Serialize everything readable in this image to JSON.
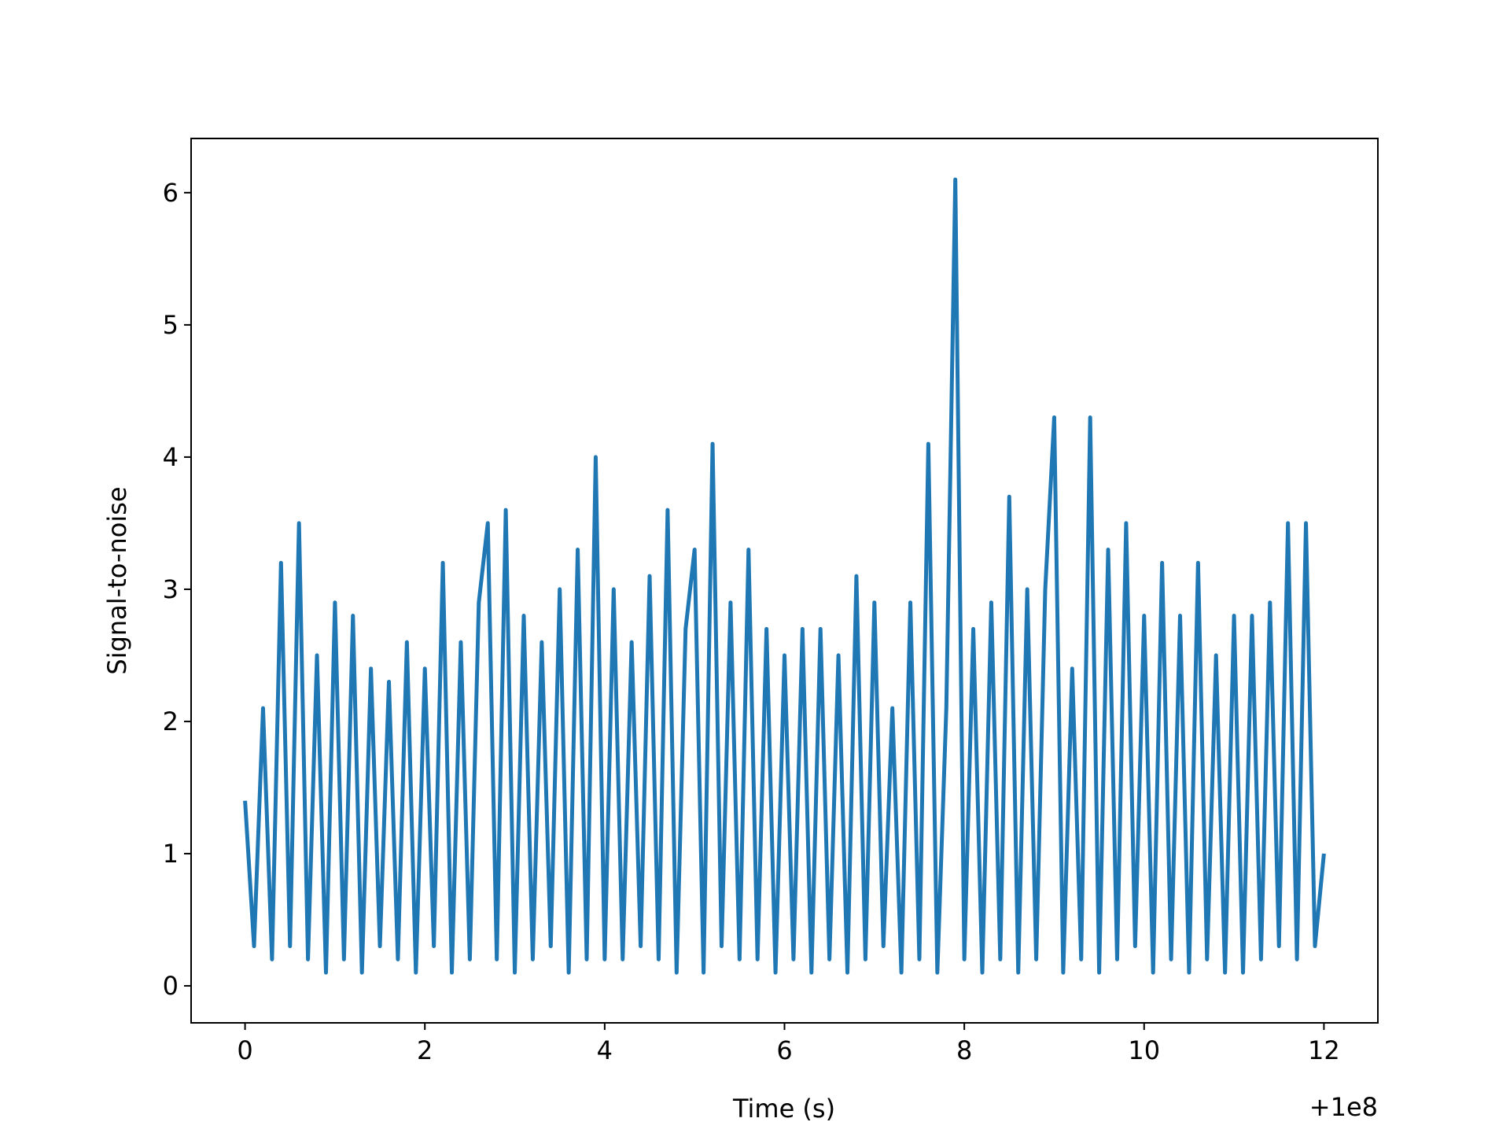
{
  "chart_data": {
    "type": "line",
    "x_label": "Time (s)",
    "y_label": "Signal-to-noise",
    "x_offset_label": "+1e8",
    "x": [
      0.0,
      0.1,
      0.2,
      0.3,
      0.4,
      0.5,
      0.6,
      0.7,
      0.8,
      0.9,
      1.0,
      1.1,
      1.2,
      1.3,
      1.4,
      1.5,
      1.6,
      1.7,
      1.8,
      1.9,
      2.0,
      2.1,
      2.2,
      2.3,
      2.4,
      2.5,
      2.6,
      2.7,
      2.8,
      2.9,
      3.0,
      3.1,
      3.2,
      3.3,
      3.4,
      3.5,
      3.6,
      3.7,
      3.8,
      3.9,
      4.0,
      4.1,
      4.2,
      4.3,
      4.4,
      4.5,
      4.6,
      4.7,
      4.8,
      4.9,
      5.0,
      5.1,
      5.2,
      5.3,
      5.4,
      5.5,
      5.6,
      5.7,
      5.8,
      5.9,
      6.0,
      6.1,
      6.2,
      6.3,
      6.4,
      6.5,
      6.6,
      6.7,
      6.8,
      6.9,
      7.0,
      7.1,
      7.2,
      7.3,
      7.4,
      7.5,
      7.6,
      7.7,
      7.8,
      7.9,
      8.0,
      8.1,
      8.2,
      8.3,
      8.4,
      8.5,
      8.6,
      8.7,
      8.8,
      8.9,
      9.0,
      9.1,
      9.2,
      9.3,
      9.4,
      9.5,
      9.6,
      9.7,
      9.8,
      9.9,
      10.0,
      10.1,
      10.2,
      10.3,
      10.4,
      10.5,
      10.6,
      10.7,
      10.8,
      10.9,
      11.0,
      11.1,
      11.2,
      11.3,
      11.4,
      11.5,
      11.6,
      11.7,
      11.8,
      11.9,
      12.0
    ],
    "series": [
      {
        "name": "Signal-to-noise",
        "color": "#1f77b4",
        "values": [
          1.4,
          0.3,
          2.1,
          0.2,
          3.2,
          0.3,
          3.5,
          0.2,
          2.5,
          0.1,
          2.9,
          0.2,
          2.8,
          0.1,
          2.4,
          0.3,
          2.3,
          0.2,
          2.6,
          0.1,
          2.4,
          0.3,
          3.2,
          0.1,
          2.6,
          0.2,
          2.9,
          3.5,
          0.2,
          3.6,
          0.1,
          2.8,
          0.2,
          2.6,
          0.3,
          3.0,
          0.1,
          3.3,
          0.2,
          4.0,
          0.2,
          3.0,
          0.2,
          2.6,
          0.3,
          3.1,
          0.2,
          3.6,
          0.1,
          2.7,
          3.3,
          0.1,
          4.1,
          0.3,
          2.9,
          0.2,
          3.3,
          0.2,
          2.7,
          0.1,
          2.5,
          0.2,
          2.7,
          0.1,
          2.7,
          0.2,
          2.5,
          0.1,
          3.1,
          0.2,
          2.9,
          0.3,
          2.1,
          0.1,
          2.9,
          0.2,
          4.1,
          0.1,
          2.1,
          6.1,
          0.2,
          2.7,
          0.1,
          2.9,
          0.2,
          3.7,
          0.1,
          3.0,
          0.2,
          3.0,
          4.3,
          0.1,
          2.4,
          0.2,
          4.3,
          0.1,
          3.3,
          0.2,
          3.5,
          0.3,
          2.8,
          0.1,
          3.2,
          0.2,
          2.8,
          0.1,
          3.2,
          0.2,
          2.5,
          0.1,
          2.8,
          0.1,
          2.8,
          0.2,
          2.9,
          0.3,
          3.5,
          0.2,
          3.5,
          0.3,
          1.0
        ]
      }
    ],
    "xlim": [
      -0.6,
      12.6
    ],
    "xticks": [
      0,
      2,
      4,
      6,
      8,
      10,
      12
    ],
    "ylim": [
      -0.28,
      6.41
    ],
    "yticks": [
      0,
      1,
      2,
      3,
      4,
      5,
      6
    ]
  }
}
